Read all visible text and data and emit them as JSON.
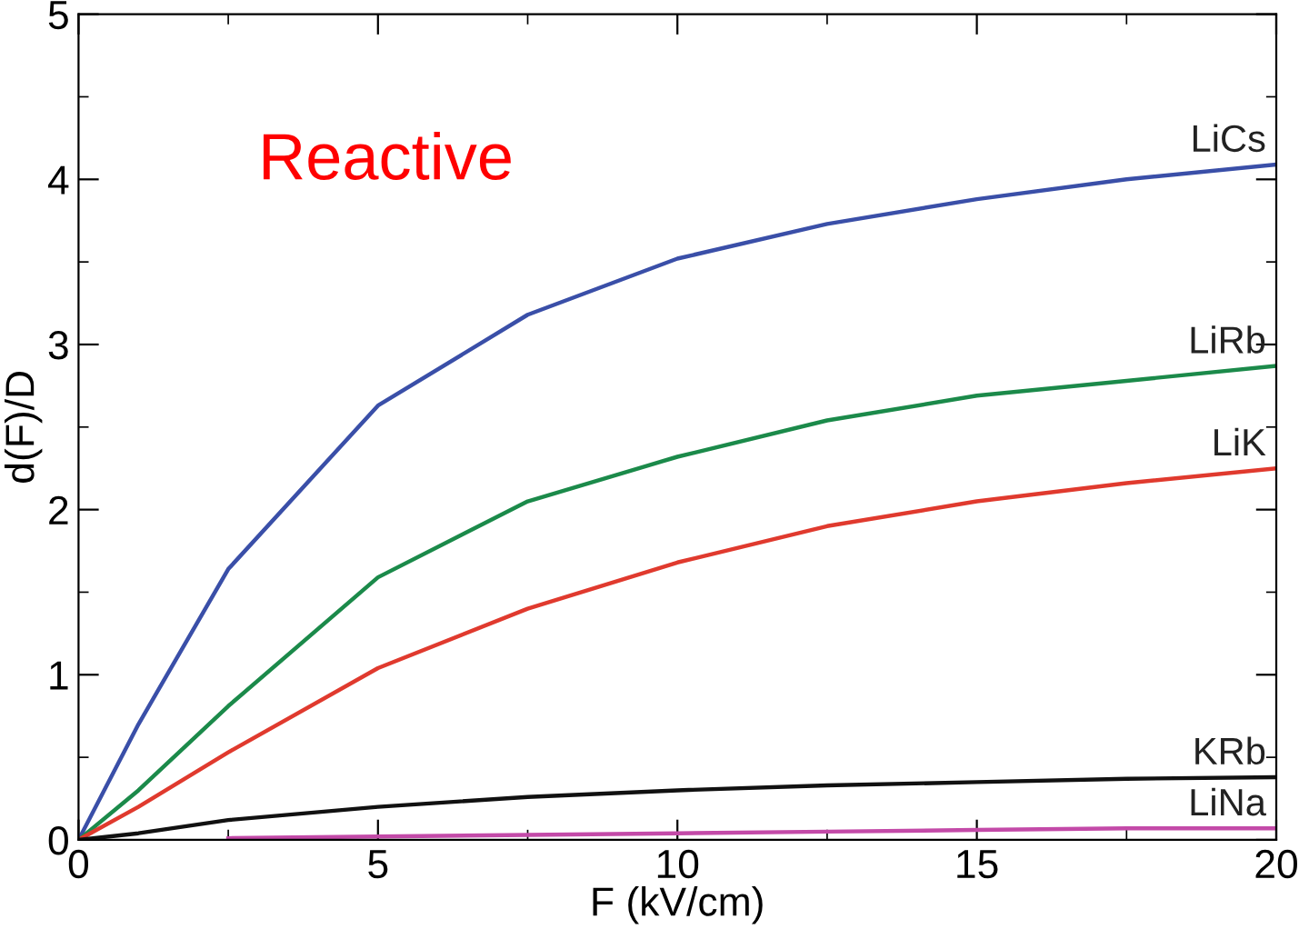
{
  "chart_data": {
    "type": "line",
    "xlabel": "F (kV/cm)",
    "ylabel": "d(F)/D",
    "annotations": [
      "Reactive"
    ],
    "x": [
      0,
      1,
      2.5,
      5,
      7.5,
      10,
      12.5,
      15,
      17.5,
      20
    ],
    "xlim": [
      0,
      20
    ],
    "xticks": [
      0,
      5,
      10,
      15,
      20
    ],
    "ylim": [
      0,
      5
    ],
    "yticks": [
      0,
      1,
      2,
      3,
      4,
      5
    ],
    "grid": false,
    "legend": false,
    "marker": "none",
    "line_style": "solid",
    "series": [
      {
        "name": "LiCs",
        "color": "#3a4fa8",
        "values": [
          0,
          0.7,
          1.64,
          2.63,
          3.18,
          3.52,
          3.73,
          3.88,
          4.0,
          4.09
        ]
      },
      {
        "name": "LiRb",
        "color": "#1b8a4a",
        "values": [
          0,
          0.3,
          0.81,
          1.59,
          2.05,
          2.32,
          2.54,
          2.69,
          2.78,
          2.87
        ]
      },
      {
        "name": "LiK",
        "color": "#e03a2e",
        "values": [
          0,
          0.2,
          0.53,
          1.04,
          1.4,
          1.68,
          1.9,
          2.05,
          2.16,
          2.25
        ]
      },
      {
        "name": "KRb",
        "color": "#111111",
        "values": [
          0,
          0.04,
          0.12,
          0.2,
          0.26,
          0.3,
          0.33,
          0.35,
          0.37,
          0.38
        ]
      },
      {
        "name": "LiNa",
        "color": "#c34aa8",
        "values": [
          null,
          null,
          0.01,
          0.02,
          0.03,
          0.04,
          0.05,
          0.06,
          0.07,
          0.07
        ]
      }
    ]
  }
}
